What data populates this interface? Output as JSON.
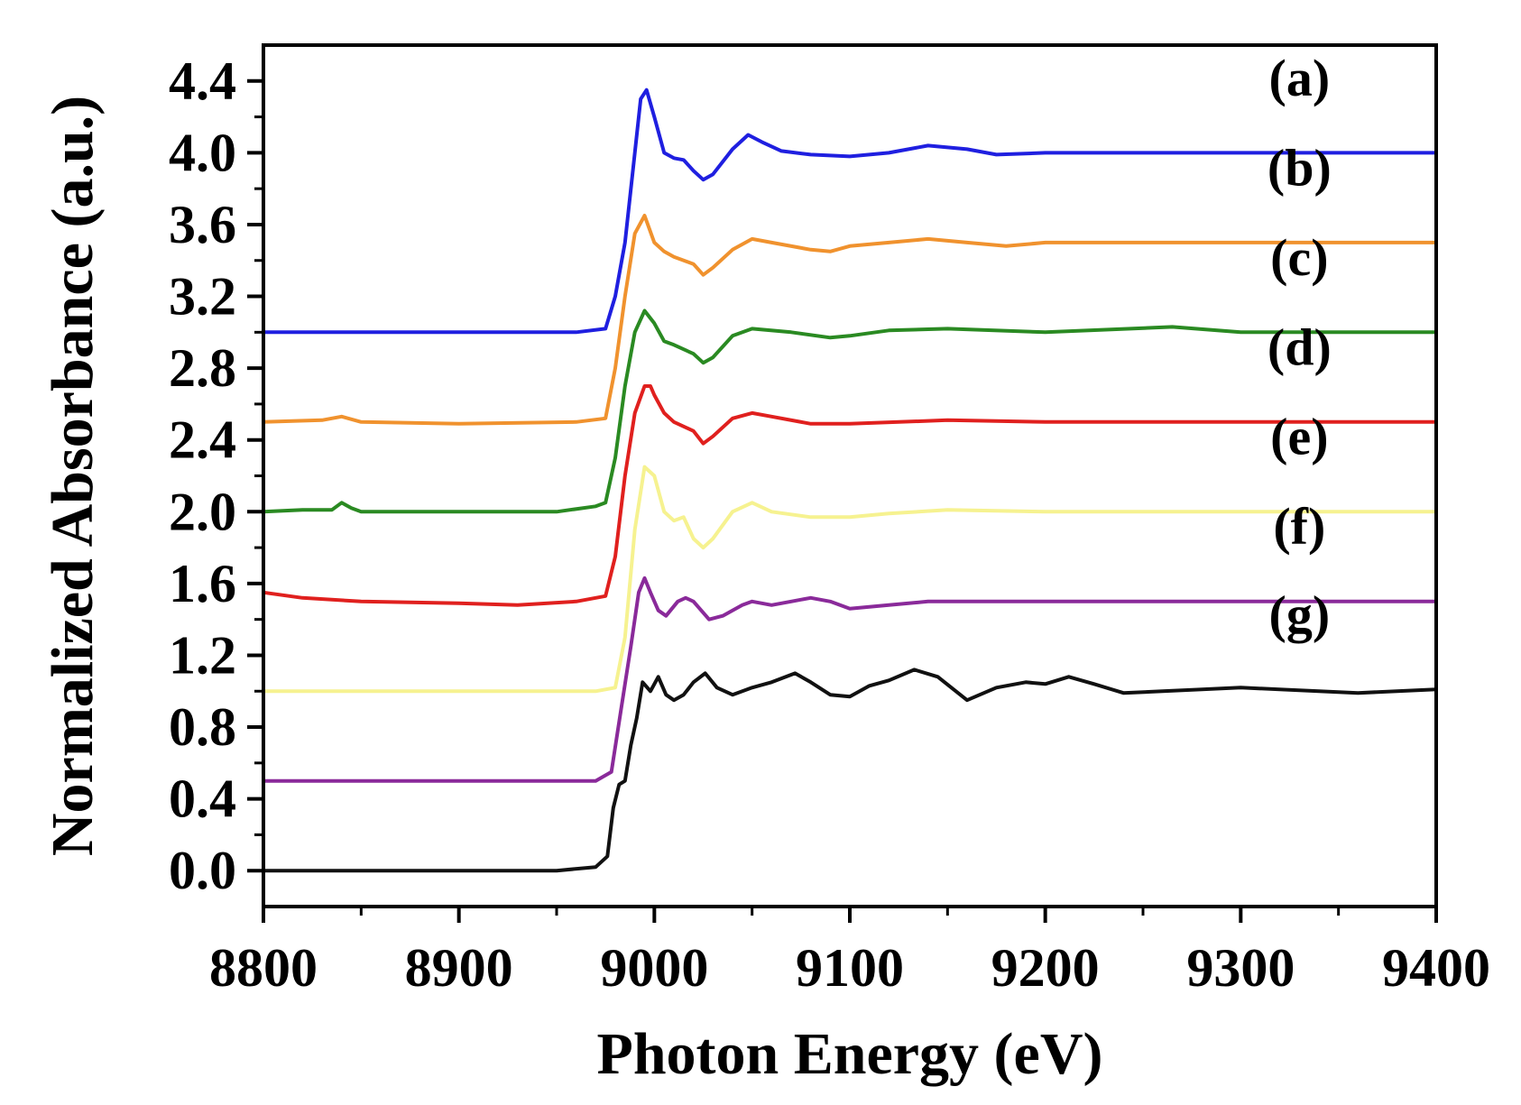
{
  "chart_data": {
    "type": "line",
    "title": "",
    "xlabel": "Photon Energy (eV)",
    "ylabel": "Normalized Absorbance (a.u.)",
    "xlim": [
      8800,
      9400
    ],
    "ylim": [
      -0.2,
      4.6
    ],
    "x_ticks": [
      "8800",
      "8900",
      "9000",
      "9100",
      "9200",
      "9300",
      "9400"
    ],
    "y_ticks": [
      "0.0",
      "0.4",
      "0.8",
      "1.2",
      "1.6",
      "2.0",
      "2.4",
      "2.8",
      "3.2",
      "3.6",
      "4.0",
      "4.4"
    ],
    "grid": false,
    "series": [
      {
        "name": "(a)",
        "color": "#1f1fe0",
        "x": [
          8800,
          8960,
          8975,
          8980,
          8985,
          8990,
          8993,
          8996,
          9000,
          9005,
          9010,
          9015,
          9020,
          9025,
          9030,
          9040,
          9048,
          9055,
          9065,
          9080,
          9100,
          9120,
          9140,
          9160,
          9175,
          9200,
          9250,
          9300,
          9400
        ],
        "y": [
          3.0,
          3.0,
          3.02,
          3.2,
          3.5,
          4.0,
          4.3,
          4.35,
          4.2,
          4.0,
          3.97,
          3.96,
          3.9,
          3.85,
          3.88,
          4.02,
          4.1,
          4.06,
          4.01,
          3.99,
          3.98,
          4.0,
          4.04,
          4.02,
          3.99,
          4.0,
          4.0,
          4.0,
          4.0
        ]
      },
      {
        "name": "(b)",
        "color": "#f0922e",
        "x": [
          8800,
          8830,
          8840,
          8850,
          8900,
          8960,
          8975,
          8980,
          8985,
          8990,
          8995,
          9000,
          9005,
          9010,
          9020,
          9025,
          9030,
          9040,
          9050,
          9060,
          9080,
          9090,
          9100,
          9120,
          9140,
          9160,
          9180,
          9200,
          9250,
          9300,
          9400
        ],
        "y": [
          2.5,
          2.51,
          2.53,
          2.5,
          2.49,
          2.5,
          2.52,
          2.8,
          3.2,
          3.55,
          3.65,
          3.5,
          3.45,
          3.42,
          3.38,
          3.32,
          3.36,
          3.46,
          3.52,
          3.5,
          3.46,
          3.45,
          3.48,
          3.5,
          3.52,
          3.5,
          3.48,
          3.5,
          3.5,
          3.5,
          3.5
        ]
      },
      {
        "name": "(c)",
        "color": "#2a8a22",
        "x": [
          8800,
          8820,
          8835,
          8840,
          8845,
          8850,
          8900,
          8950,
          8970,
          8975,
          8980,
          8985,
          8990,
          8995,
          9000,
          9005,
          9010,
          9020,
          9025,
          9030,
          9040,
          9050,
          9070,
          9090,
          9100,
          9120,
          9150,
          9200,
          9265,
          9300,
          9400
        ],
        "y": [
          2.0,
          2.01,
          2.01,
          2.05,
          2.02,
          2.0,
          2.0,
          2.0,
          2.03,
          2.05,
          2.3,
          2.7,
          3.0,
          3.12,
          3.05,
          2.95,
          2.93,
          2.88,
          2.83,
          2.86,
          2.98,
          3.02,
          3.0,
          2.97,
          2.98,
          3.01,
          3.02,
          3.0,
          3.03,
          3.0,
          3.0
        ]
      },
      {
        "name": "(d)",
        "color": "#e0201e",
        "x": [
          8800,
          8820,
          8850,
          8900,
          8930,
          8960,
          8975,
          8980,
          8985,
          8990,
          8995,
          8998,
          9000,
          9005,
          9010,
          9020,
          9025,
          9030,
          9040,
          9050,
          9060,
          9080,
          9100,
          9150,
          9200,
          9300,
          9400
        ],
        "y": [
          1.55,
          1.52,
          1.5,
          1.49,
          1.48,
          1.5,
          1.53,
          1.75,
          2.2,
          2.55,
          2.7,
          2.7,
          2.65,
          2.55,
          2.5,
          2.45,
          2.38,
          2.42,
          2.52,
          2.55,
          2.53,
          2.49,
          2.49,
          2.51,
          2.5,
          2.5,
          2.5
        ]
      },
      {
        "name": "(e)",
        "color": "#f6f290",
        "x": [
          8800,
          8970,
          8980,
          8985,
          8990,
          8995,
          9000,
          9005,
          9010,
          9015,
          9020,
          9025,
          9030,
          9040,
          9050,
          9060,
          9080,
          9100,
          9120,
          9150,
          9200,
          9300,
          9400
        ],
        "y": [
          1.0,
          1.0,
          1.02,
          1.3,
          1.9,
          2.25,
          2.2,
          2.0,
          1.95,
          1.97,
          1.85,
          1.8,
          1.85,
          2.0,
          2.05,
          2.0,
          1.97,
          1.97,
          1.99,
          2.01,
          2.0,
          2.0,
          2.0
        ]
      },
      {
        "name": "(f)",
        "color": "#8a2a9a",
        "x": [
          8800,
          8970,
          8978,
          8983,
          8988,
          8992,
          8995,
          8998,
          9002,
          9006,
          9012,
          9016,
          9020,
          9028,
          9035,
          9045,
          9050,
          9060,
          9070,
          9080,
          9090,
          9100,
          9120,
          9140,
          9160,
          9200,
          9300,
          9400
        ],
        "y": [
          0.5,
          0.5,
          0.55,
          0.9,
          1.25,
          1.55,
          1.63,
          1.55,
          1.45,
          1.42,
          1.5,
          1.52,
          1.5,
          1.4,
          1.42,
          1.48,
          1.5,
          1.48,
          1.5,
          1.52,
          1.5,
          1.46,
          1.48,
          1.5,
          1.5,
          1.5,
          1.5,
          1.5
        ]
      },
      {
        "name": "(g)",
        "color": "#111111",
        "x": [
          8800,
          8900,
          8950,
          8970,
          8976,
          8979,
          8982,
          8985,
          8988,
          8991,
          8994,
          8998,
          9002,
          9006,
          9010,
          9015,
          9020,
          9026,
          9032,
          9040,
          9050,
          9060,
          9072,
          9080,
          9090,
          9100,
          9110,
          9120,
          9133,
          9145,
          9160,
          9175,
          9190,
          9200,
          9212,
          9225,
          9240,
          9260,
          9300,
          9340,
          9360,
          9400
        ],
        "y": [
          0.0,
          0.0,
          0.0,
          0.02,
          0.08,
          0.35,
          0.48,
          0.5,
          0.7,
          0.85,
          1.05,
          1.0,
          1.08,
          0.98,
          0.95,
          0.98,
          1.05,
          1.1,
          1.02,
          0.98,
          1.02,
          1.05,
          1.1,
          1.05,
          0.98,
          0.97,
          1.03,
          1.06,
          1.12,
          1.08,
          0.95,
          1.02,
          1.05,
          1.04,
          1.08,
          1.04,
          0.99,
          1.0,
          1.02,
          1.0,
          0.99,
          1.01
        ]
      }
    ]
  }
}
